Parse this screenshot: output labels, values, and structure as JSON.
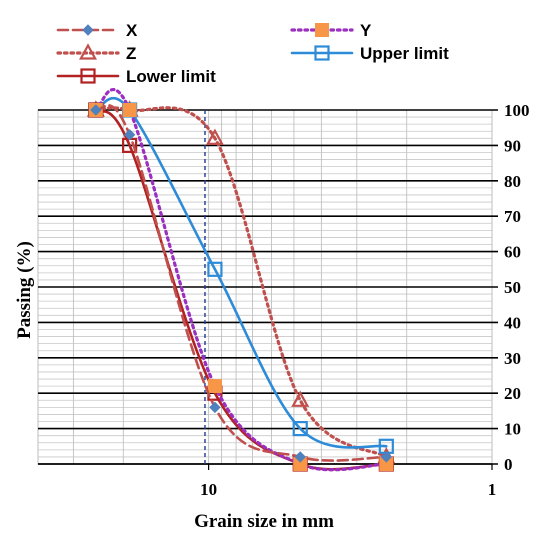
{
  "chart_data": {
    "type": "line",
    "xlabel": "Grain size in mm",
    "ylabel": "Passing (%)",
    "x_scale": "log",
    "x_reversed": true,
    "xlim": [
      40,
      1
    ],
    "ylim": [
      0,
      100
    ],
    "x_ticks": [
      10,
      1
    ],
    "y_ticks": [
      0,
      10,
      20,
      30,
      40,
      50,
      60,
      70,
      80,
      90,
      100
    ],
    "grid": true,
    "reference_line_x": 10.3,
    "legend": {
      "position": "top",
      "columns": 2
    },
    "series": [
      {
        "name": "X",
        "color": "#c0504d",
        "marker_color": "#4f81bd",
        "marker": "diamond",
        "dash": "dashed",
        "x": [
          25,
          19,
          9.5,
          4.75,
          2.36
        ],
        "y": [
          100,
          93,
          16,
          2,
          2
        ]
      },
      {
        "name": "Y",
        "color": "#9b30c0",
        "marker_color": "#f79646",
        "marker": "square-filled",
        "dash": "dotted",
        "x": [
          25,
          19,
          9.5,
          4.75,
          2.36
        ],
        "y": [
          100,
          100,
          22,
          0,
          0
        ]
      },
      {
        "name": "Z",
        "color": "#c0504d",
        "marker_color": "#c0504d",
        "marker": "triangle-open",
        "dash": "dotted",
        "x": [
          25,
          19,
          9.5,
          4.75,
          2.36
        ],
        "y": [
          100,
          100,
          92,
          18,
          2
        ]
      },
      {
        "name": "Upper limit",
        "color": "#2e8bd7",
        "marker_color": "#2e8bd7",
        "marker": "square-open",
        "dash": "solid",
        "x": [
          25,
          19,
          9.5,
          4.75,
          2.36
        ],
        "y": [
          100,
          100,
          55,
          10,
          5
        ]
      },
      {
        "name": "Lower limit",
        "color": "#b22222",
        "marker_color": "#b22222",
        "marker": "square-open",
        "dash": "solid",
        "x": [
          25,
          19,
          9.5,
          4.75,
          2.36
        ],
        "y": [
          100,
          90,
          20,
          0,
          0
        ]
      }
    ]
  }
}
